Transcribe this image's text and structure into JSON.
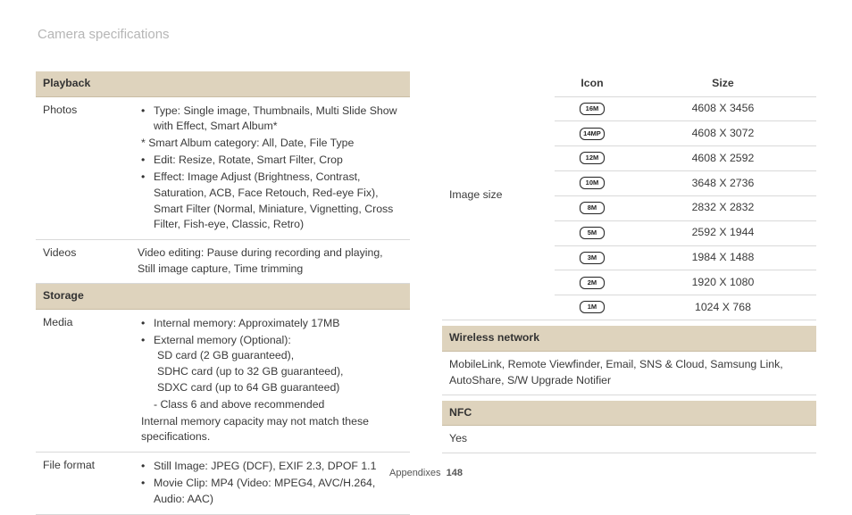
{
  "page": {
    "title": "Camera specifications",
    "footer_label": "Appendixes",
    "footer_page": "148"
  },
  "left": {
    "sections": {
      "playback": "Playback",
      "storage": "Storage"
    },
    "photos": {
      "label": "Photos",
      "type_line": "Type: Single image, Thumbnails, Multi Slide Show with Effect, Smart Album*",
      "star_line": "* Smart Album category: All, Date, File Type",
      "edit_line": "Edit: Resize, Rotate, Smart Filter, Crop",
      "effect_line": "Effect: Image Adjust (Brightness, Contrast, Saturation, ACB, Face Retouch, Red-eye Fix), Smart Filter (Normal, Miniature, Vignetting, Cross Filter, Fish-eye, Classic, Retro)"
    },
    "videos": {
      "label": "Videos",
      "text": "Video editing: Pause during recording and playing, Still image capture, Time trimming"
    },
    "media": {
      "label": "Media",
      "internal": "Internal memory: Approximately 17MB",
      "external_head": "External memory (Optional):",
      "ext_sd": "SD card (2 GB guaranteed),",
      "ext_sdhc": "SDHC card (up to 32 GB guaranteed),",
      "ext_sdxc": "SDXC card (up to 64 GB guaranteed)",
      "class6": "Class 6 and above recommended",
      "note": "Internal memory capacity may not match these specifications."
    },
    "file_format": {
      "label": "File format",
      "still": "Still Image: JPEG (DCF), EXIF 2.3, DPOF 1.1",
      "movie": "Movie Clip: MP4 (Video: MPEG4, AVC/H.264, Audio: AAC)"
    }
  },
  "right": {
    "image_size": {
      "label": "Image size",
      "icon_header": "Icon",
      "size_header": "Size",
      "rows": [
        {
          "icon": "16M",
          "size": "4608 X 3456"
        },
        {
          "icon": "14MP",
          "size": "4608 X 3072"
        },
        {
          "icon": "12M",
          "size": "4608 X 2592"
        },
        {
          "icon": "10M",
          "size": "3648 X 2736"
        },
        {
          "icon": "8M",
          "size": "2832 X 2832"
        },
        {
          "icon": "5M",
          "size": "2592 X 1944"
        },
        {
          "icon": "3M",
          "size": "1984 X 1488"
        },
        {
          "icon": "2M",
          "size": "1920 X 1080"
        },
        {
          "icon": "1M",
          "size": "1024 X 768"
        }
      ]
    },
    "wireless": {
      "header": "Wireless network",
      "body": "MobileLink, Remote Viewfinder, Email, SNS & Cloud, Samsung Link, AutoShare, S/W Upgrade Notifier"
    },
    "nfc": {
      "header": "NFC",
      "body": "Yes"
    }
  }
}
